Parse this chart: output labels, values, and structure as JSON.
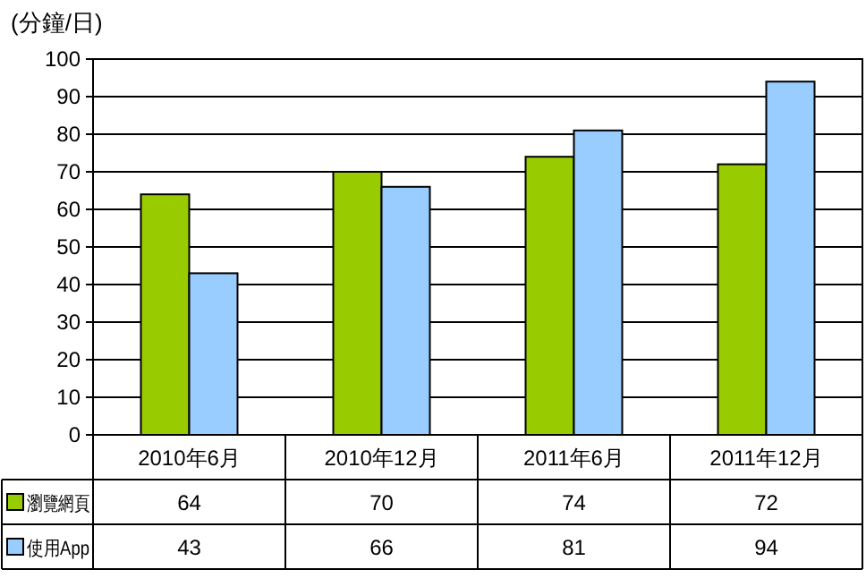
{
  "chart_data": {
    "type": "bar",
    "ylabel": "(分鐘/日)",
    "categories": [
      "2010年6月",
      "2010年12月",
      "2011年6月",
      "2011年12月"
    ],
    "series": [
      {
        "name": "瀏覽網頁",
        "color": "#99cc00",
        "values": [
          64,
          70,
          74,
          72
        ]
      },
      {
        "name": "使用App",
        "color": "#99ccff",
        "values": [
          43,
          66,
          81,
          94
        ]
      }
    ],
    "ylim": [
      0,
      100
    ],
    "yticks": [
      0,
      10,
      20,
      30,
      40,
      50,
      60,
      70,
      80,
      90,
      100
    ],
    "grid": "y",
    "legend": "bottom",
    "data_labels": true
  }
}
